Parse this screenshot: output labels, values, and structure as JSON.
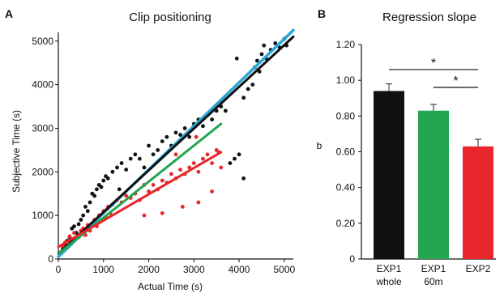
{
  "chart_data": [
    {
      "type": "scatter",
      "panel_label": "A",
      "title": "Clip positioning",
      "xlabel": "Actual Time (s)",
      "ylabel": "Subjective Time (s)",
      "xlim": [
        0,
        5200
      ],
      "ylim": [
        0,
        5200
      ],
      "xticks": [
        "0",
        "1000",
        "2000",
        "3000",
        "4000",
        "5000"
      ],
      "yticks": [
        "0",
        "1000",
        "2000",
        "3000",
        "4000",
        "5000"
      ],
      "grid": false,
      "legend": "none",
      "colors": {
        "black": "#111111",
        "red": "#e8262b",
        "green": "#23a64f",
        "blue": "#2aa7d8"
      },
      "series": [
        {
          "color": "#111111",
          "points": [
            [
              60,
              150
            ],
            [
              100,
              250
            ],
            [
              150,
              350
            ],
            [
              200,
              420
            ],
            [
              250,
              500
            ],
            [
              300,
              700
            ],
            [
              350,
              750
            ],
            [
              400,
              600
            ],
            [
              450,
              800
            ],
            [
              500,
              900
            ],
            [
              550,
              1000
            ],
            [
              600,
              1200
            ],
            [
              650,
              1100
            ],
            [
              700,
              1300
            ],
            [
              750,
              1500
            ],
            [
              800,
              1450
            ],
            [
              850,
              1600
            ],
            [
              900,
              1700
            ],
            [
              950,
              1650
            ],
            [
              1000,
              1800
            ],
            [
              1050,
              1900
            ],
            [
              1100,
              1850
            ],
            [
              1200,
              2000
            ],
            [
              1300,
              2100
            ],
            [
              1400,
              2200
            ],
            [
              1500,
              2050
            ],
            [
              1600,
              2300
            ],
            [
              1700,
              2400
            ],
            [
              1800,
              2300
            ],
            [
              1900,
              2100
            ],
            [
              2000,
              2600
            ],
            [
              2100,
              2400
            ],
            [
              2200,
              2500
            ],
            [
              2300,
              2700
            ],
            [
              2400,
              2800
            ],
            [
              2500,
              2600
            ],
            [
              2600,
              2900
            ],
            [
              2700,
              2850
            ],
            [
              2800,
              3000
            ],
            [
              2900,
              2800
            ],
            [
              3000,
              3100
            ],
            [
              3100,
              3200
            ],
            [
              3200,
              3050
            ],
            [
              3300,
              3300
            ],
            [
              3400,
              3200
            ],
            [
              3500,
              3400
            ],
            [
              3600,
              3500
            ],
            [
              3700,
              3400
            ],
            [
              3800,
              2200
            ],
            [
              3900,
              2300
            ],
            [
              4000,
              2400
            ],
            [
              4100,
              3700
            ],
            [
              4200,
              3900
            ],
            [
              4300,
              4000
            ],
            [
              4350,
              4400
            ],
            [
              4400,
              4550
            ],
            [
              4450,
              4300
            ],
            [
              4500,
              4700
            ],
            [
              4550,
              4900
            ],
            [
              4600,
              4600
            ],
            [
              4700,
              4800
            ],
            [
              4800,
              4950
            ],
            [
              4900,
              4850
            ],
            [
              5000,
              5050
            ],
            [
              5050,
              4900
            ],
            [
              4100,
              1850
            ],
            [
              3950,
              4600
            ],
            [
              1350,
              1600
            ]
          ]
        },
        {
          "color": "#e8262b",
          "points": [
            [
              100,
              300
            ],
            [
              150,
              380
            ],
            [
              200,
              260
            ],
            [
              250,
              520
            ],
            [
              300,
              420
            ],
            [
              350,
              600
            ],
            [
              400,
              480
            ],
            [
              450,
              500
            ],
            [
              500,
              650
            ],
            [
              550,
              700
            ],
            [
              600,
              550
            ],
            [
              650,
              780
            ],
            [
              700,
              650
            ],
            [
              750,
              820
            ],
            [
              800,
              900
            ],
            [
              850,
              750
            ],
            [
              900,
              1000
            ],
            [
              950,
              880
            ],
            [
              1000,
              1100
            ],
            [
              1050,
              960
            ],
            [
              1100,
              1200
            ],
            [
              1150,
              1050
            ],
            [
              1200,
              1250
            ],
            [
              1300,
              1350
            ],
            [
              1400,
              1300
            ],
            [
              1500,
              1450
            ],
            [
              1600,
              1400
            ],
            [
              1700,
              1500
            ],
            [
              1800,
              1350
            ],
            [
              1900,
              1700
            ],
            [
              2000,
              1550
            ],
            [
              2100,
              1700
            ],
            [
              2200,
              1600
            ],
            [
              2300,
              1800
            ],
            [
              2400,
              1750
            ],
            [
              2500,
              1950
            ],
            [
              2600,
              1850
            ],
            [
              2700,
              2050
            ],
            [
              2800,
              1950
            ],
            [
              2900,
              2100
            ],
            [
              3000,
              2200
            ],
            [
              3100,
              2000
            ],
            [
              3200,
              2300
            ],
            [
              3300,
              2400
            ],
            [
              3400,
              2200
            ],
            [
              3500,
              2500
            ],
            [
              3550,
              2450
            ],
            [
              3600,
              2100
            ],
            [
              2750,
              1200
            ],
            [
              3100,
              1300
            ],
            [
              2300,
              1050
            ],
            [
              1900,
              1000
            ],
            [
              2600,
              2400
            ],
            [
              3050,
              2800
            ],
            [
              3400,
              1550
            ]
          ]
        }
      ],
      "fits": [
        {
          "color": "#2aa7d8",
          "from": [
            0,
            50
          ],
          "to": [
            5200,
            5250
          ]
        },
        {
          "color": "#111111",
          "from": [
            0,
            120
          ],
          "to": [
            5200,
            5100
          ]
        },
        {
          "color": "#23a64f",
          "from": [
            0,
            120
          ],
          "to": [
            3600,
            3100
          ]
        },
        {
          "color": "#e8262b",
          "from": [
            0,
            280
          ],
          "to": [
            3600,
            2450
          ]
        }
      ]
    },
    {
      "type": "bar",
      "panel_label": "B",
      "title": "Regression slope",
      "ylabel": "b",
      "ylim": [
        0,
        1.2
      ],
      "yticks": [
        "0",
        "0.20",
        "0.40",
        "0.60",
        "0.80",
        "1.00",
        "1.20"
      ],
      "categories": [
        {
          "line1": "EXP1",
          "line2": "whole"
        },
        {
          "line1": "EXP1",
          "line2": "60m"
        },
        {
          "line1": "EXP2",
          "line2": ""
        }
      ],
      "values": [
        0.94,
        0.83,
        0.63
      ],
      "errors": [
        0.04,
        0.035,
        0.04
      ],
      "colors": [
        "#111111",
        "#23a64f",
        "#e8262b"
      ],
      "significance": [
        {
          "from": 0,
          "to": 2,
          "y": 1.06,
          "label": "*"
        },
        {
          "from": 1,
          "to": 2,
          "y": 0.96,
          "label": "*"
        }
      ]
    }
  ]
}
